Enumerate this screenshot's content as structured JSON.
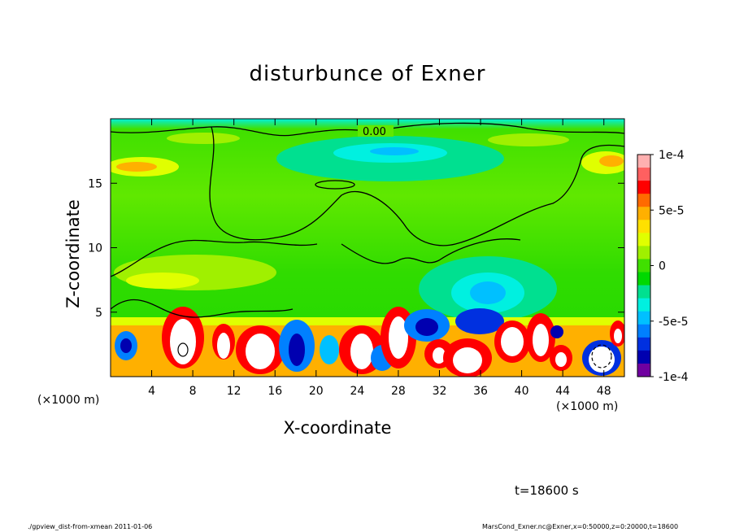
{
  "chart_data": {
    "type": "heatmap",
    "title": "disturbunce of Exner",
    "xlabel": "X-coordinate",
    "ylabel": "Z-coordinate",
    "x_unit": "(×1000 m)",
    "xlim": [
      0,
      50
    ],
    "ylim": [
      0,
      20
    ],
    "x_ticks": [
      4,
      8,
      12,
      16,
      20,
      24,
      28,
      32,
      36,
      40,
      44,
      48
    ],
    "y_ticks": [
      5,
      10,
      15
    ],
    "colorbar": {
      "range": [
        -0.0001,
        0.0001
      ],
      "tick_labels": [
        "1e-4",
        "5e-5",
        "0",
        "-5e-5",
        "-1e-4"
      ],
      "colors": [
        "#ffb0b0",
        "#ff6060",
        "#ff0000",
        "#ff6a00",
        "#ffb000",
        "#ffe000",
        "#e0ff00",
        "#a0f000",
        "#40e000",
        "#00d800",
        "#00e090",
        "#00f0e0",
        "#00c0ff",
        "#0080ff",
        "#0030e0",
        "#0000b0",
        "#7000a0"
      ]
    },
    "contour_label": "0.00",
    "annotation_time": "t=18600 s"
  },
  "footer": {
    "left": "./gpview_dist-from-xmean  2011-01-06",
    "right": "MarsCond_Exner.nc@Exner,x=0:50000,z=0:20000,t=18600"
  }
}
